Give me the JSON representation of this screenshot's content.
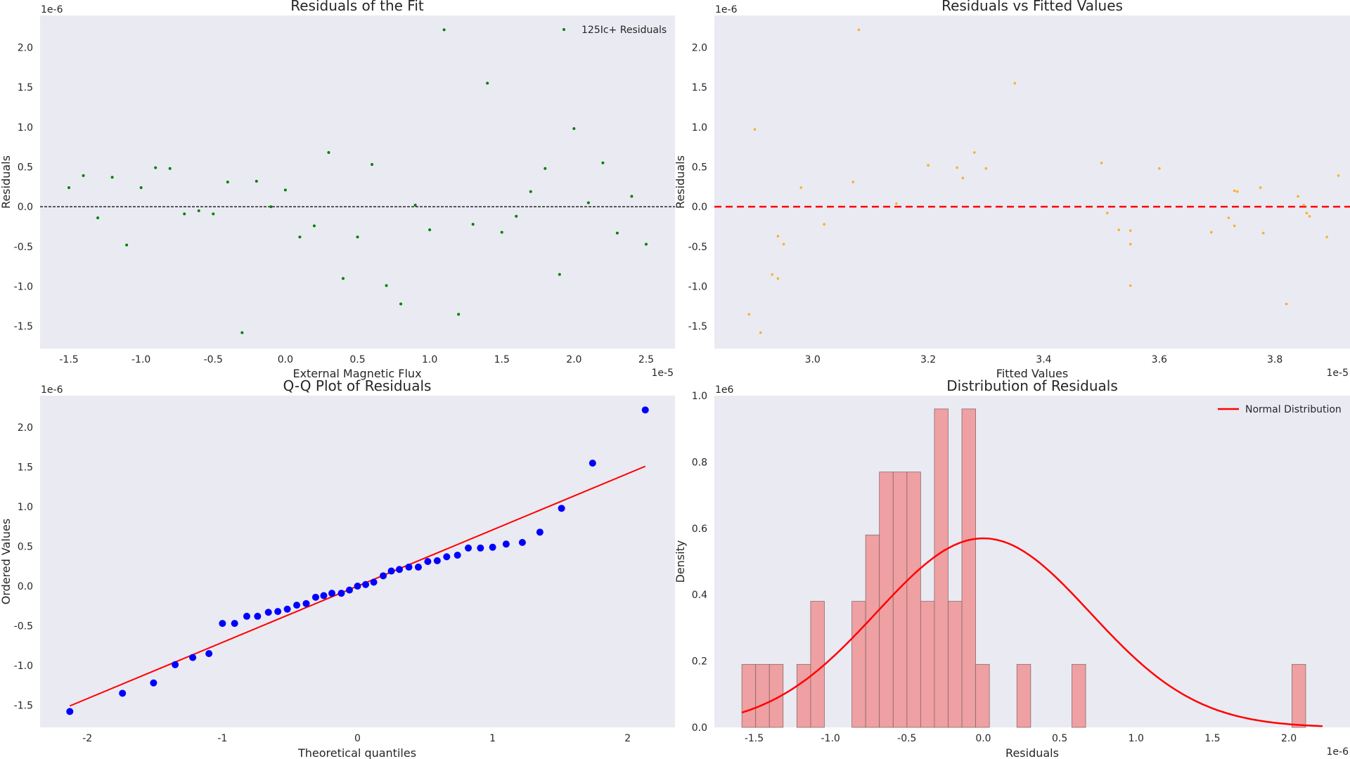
{
  "charts": [
    {
      "id": "residuals_fit",
      "title": "Residuals of the Fit",
      "xlabel": "External Magnetic Flux",
      "ylabel": "Residuals",
      "x_offset": "1e-5",
      "y_offset": "1e-6",
      "x_ticks": [
        "-1.5",
        "-1.0",
        "-0.5",
        "0.0",
        "0.5",
        "1.0",
        "1.5",
        "2.0",
        "2.5"
      ],
      "y_ticks": [
        "-1.5",
        "-1.0",
        "-0.5",
        "0.0",
        "0.5",
        "1.0",
        "1.5",
        "2.0"
      ],
      "legend_label": "125Ic+ Residuals"
    },
    {
      "id": "residuals_vs_fitted",
      "title": "Residuals vs Fitted Values",
      "xlabel": "Fitted Values",
      "ylabel": "Residuals",
      "x_offset": "1e-5",
      "y_offset": "1e-6",
      "x_ticks": [
        "3.0",
        "3.2",
        "3.4",
        "3.6",
        "3.8"
      ],
      "y_ticks": [
        "-1.5",
        "-1.0",
        "-0.5",
        "0.0",
        "0.5",
        "1.0",
        "1.5",
        "2.0"
      ]
    },
    {
      "id": "qq_plot",
      "title": "Q-Q Plot of Residuals",
      "xlabel": "Theoretical quantiles",
      "ylabel": "Ordered Values",
      "y_offset": "1e-6",
      "x_ticks": [
        "-2",
        "-1",
        "0",
        "1",
        "2"
      ],
      "y_ticks": [
        "-1.5",
        "-1.0",
        "-0.5",
        "0.0",
        "0.5",
        "1.0",
        "1.5",
        "2.0"
      ]
    },
    {
      "id": "residual_distribution",
      "title": "Distribution of Residuals",
      "xlabel": "Residuals",
      "ylabel": "Density",
      "x_offset": "1e-6",
      "y_offset": "1e6",
      "x_ticks": [
        "-1.5",
        "-1.0",
        "-0.5",
        "0.0",
        "0.5",
        "1.0",
        "1.5",
        "2.0"
      ],
      "y_ticks": [
        "0.0",
        "0.2",
        "0.4",
        "0.6",
        "0.8",
        "1.0"
      ],
      "legend_label": "Normal Distribution"
    }
  ],
  "chart_data": [
    {
      "type": "scatter",
      "title": "Residuals of the Fit",
      "xlabel": "External Magnetic Flux",
      "ylabel": "Residuals",
      "x_scale": "1e-5",
      "y_scale": "1e-6",
      "xlim": [
        -1.7,
        2.7
      ],
      "ylim": [
        -1.78,
        2.4
      ],
      "reference_line": {
        "y": 0,
        "style": "dashed",
        "color": "#000000"
      },
      "legend": "top-right",
      "grid": false,
      "series": [
        {
          "name": "125Ic+ Residuals",
          "color": "#008000",
          "x": [
            -1.5,
            -1.4,
            -1.3,
            -1.2,
            -1.1,
            -1.0,
            -0.9,
            -0.8,
            -0.7,
            -0.6,
            -0.5,
            -0.4,
            -0.3,
            -0.2,
            -0.1,
            0.0,
            0.1,
            0.2,
            0.3,
            0.4,
            0.5,
            0.6,
            0.7,
            0.8,
            0.9,
            1.0,
            1.1,
            1.2,
            1.3,
            1.4,
            1.5,
            1.6,
            1.7,
            1.8,
            1.9,
            2.0,
            2.1,
            2.2,
            2.3,
            2.4,
            2.5
          ],
          "y": [
            0.24,
            0.39,
            -0.14,
            0.37,
            -0.48,
            0.24,
            0.49,
            0.48,
            -0.09,
            -0.05,
            -0.09,
            0.31,
            -1.58,
            0.32,
            0.0,
            0.21,
            -0.38,
            -0.24,
            0.68,
            -0.9,
            -0.38,
            0.53,
            -0.99,
            -1.22,
            0.02,
            -0.29,
            2.22,
            -1.35,
            -0.22,
            1.55,
            -0.32,
            -0.12,
            0.19,
            0.48,
            -0.85,
            0.98,
            0.05,
            0.55,
            -0.33,
            0.13,
            -0.47
          ]
        }
      ]
    },
    {
      "type": "scatter",
      "title": "Residuals vs Fitted Values",
      "xlabel": "Fitted Values",
      "ylabel": "Residuals",
      "x_scale": "1e-5",
      "y_scale": "1e-6",
      "xlim": [
        2.83,
        3.93
      ],
      "ylim": [
        -1.78,
        2.4
      ],
      "reference_line": {
        "y": 0,
        "style": "dashed",
        "color": "#ff0000"
      },
      "grid": false,
      "series": [
        {
          "color": "#ffa500",
          "x": [
            2.89,
            2.9,
            2.91,
            2.93,
            2.94,
            2.94,
            2.95,
            2.98,
            3.02,
            3.07,
            3.08,
            3.145,
            3.2,
            3.25,
            3.26,
            3.28,
            3.3,
            3.35,
            3.5,
            3.51,
            3.53,
            3.55,
            3.55,
            3.55,
            3.6,
            3.69,
            3.72,
            3.73,
            3.73,
            3.735,
            3.775,
            3.78,
            3.82,
            3.84,
            3.85,
            3.855,
            3.86,
            3.89,
            3.91
          ],
          "y": [
            -1.35,
            0.97,
            -1.58,
            -0.85,
            -0.37,
            -0.9,
            -0.47,
            0.24,
            -0.22,
            0.31,
            2.22,
            0.04,
            0.52,
            0.49,
            0.36,
            0.68,
            0.48,
            1.55,
            0.55,
            -0.08,
            -0.29,
            -0.47,
            -0.99,
            -0.3,
            0.48,
            -0.32,
            -0.14,
            -0.24,
            0.2,
            0.19,
            0.24,
            -0.33,
            -1.22,
            0.13,
            0.02,
            -0.08,
            -0.12,
            -0.38,
            0.39
          ]
        }
      ]
    },
    {
      "type": "scatter",
      "title": "Q-Q Plot of Residuals",
      "xlabel": "Theoretical quantiles",
      "ylabel": "Ordered Values",
      "y_scale": "1e-6",
      "xlim": [
        -2.35,
        2.35
      ],
      "ylim": [
        -1.78,
        2.4
      ],
      "grid": false,
      "fit_line": {
        "x": [
          -2.13,
          2.13
        ],
        "y": [
          -1.51,
          1.51
        ],
        "color": "#ff0000"
      },
      "series": [
        {
          "color": "#0000ff",
          "x": [
            -2.13,
            -1.74,
            -1.51,
            -1.35,
            -1.22,
            -1.1,
            -1.0,
            -0.91,
            -0.82,
            -0.74,
            -0.66,
            -0.59,
            -0.52,
            -0.45,
            -0.38,
            -0.31,
            -0.25,
            -0.19,
            -0.12,
            -0.06,
            0.0,
            0.06,
            0.12,
            0.19,
            0.25,
            0.31,
            0.38,
            0.45,
            0.52,
            0.59,
            0.66,
            0.74,
            0.82,
            0.91,
            1.0,
            1.1,
            1.22,
            1.35,
            1.51,
            1.74,
            2.13
          ],
          "y": [
            -1.58,
            -1.35,
            -1.22,
            -0.99,
            -0.9,
            -0.85,
            -0.47,
            -0.47,
            -0.38,
            -0.38,
            -0.33,
            -0.32,
            -0.29,
            -0.24,
            -0.22,
            -0.14,
            -0.12,
            -0.09,
            -0.09,
            -0.05,
            0.0,
            0.02,
            0.05,
            0.13,
            0.19,
            0.21,
            0.24,
            0.24,
            0.31,
            0.32,
            0.37,
            0.39,
            0.48,
            0.48,
            0.49,
            0.53,
            0.55,
            0.68,
            0.98,
            1.55,
            2.22
          ]
        }
      ]
    },
    {
      "type": "bar",
      "subtype": "histogram",
      "title": "Distribution of Residuals",
      "xlabel": "Residuals",
      "ylabel": "Density",
      "x_scale": "1e-6",
      "y_scale": "1e6",
      "xlim": [
        -1.76,
        2.4
      ],
      "ylim": [
        0,
        1.0
      ],
      "legend": "top-right",
      "grid": false,
      "bin_start": -1.58,
      "bin_width": 0.09,
      "bar_color": "#f08080",
      "densities": [
        0.19,
        0.19,
        0.19,
        0,
        0.19,
        0.38,
        0,
        0,
        0.38,
        0.58,
        0.77,
        0.77,
        0.77,
        0.38,
        0.96,
        0.38,
        0.96,
        0.19,
        0,
        0,
        0.19,
        0,
        0,
        0,
        0.19,
        0,
        0,
        0,
        0,
        0,
        0,
        0,
        0,
        0,
        0,
        0,
        0,
        0,
        0,
        0,
        0.19
      ],
      "series": [
        {
          "name": "Normal Distribution",
          "type": "line",
          "color": "#ff0000",
          "mean": 0.0,
          "std": 0.7
        }
      ]
    }
  ]
}
